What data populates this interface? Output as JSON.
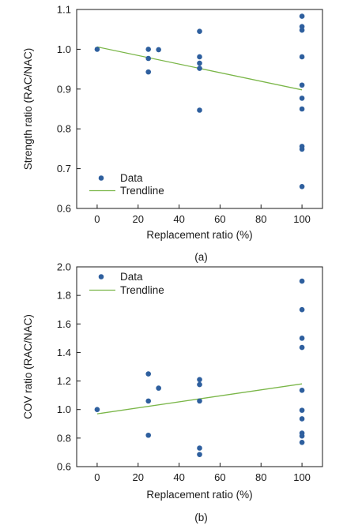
{
  "chart_data": [
    {
      "type": "scatter",
      "panel_label": "(a)",
      "xlabel": "Replacement ratio (%)",
      "ylabel": "Strength ratio (RAC/NAC)",
      "xlim": [
        -10,
        110
      ],
      "ylim": [
        0.6,
        1.1
      ],
      "xticks": [
        0,
        20,
        40,
        60,
        80,
        100
      ],
      "yticks": [
        0.6,
        0.7,
        0.8,
        0.9,
        1.0,
        1.1
      ],
      "ytick_labels": [
        "0.6",
        "0.7",
        "0.8",
        "0.9",
        "1.0",
        "1.1"
      ],
      "grid": false,
      "legend_position": "bottom-left",
      "series": [
        {
          "name": "Data",
          "kind": "points",
          "color": "#2e5f9e",
          "x": [
            0,
            25,
            25,
            25,
            30,
            50,
            50,
            50,
            50,
            50,
            100,
            100,
            100,
            100,
            100,
            100,
            100,
            100,
            100,
            100
          ],
          "y": [
            1.0,
            1.0,
            0.977,
            0.943,
            0.999,
            1.045,
            0.981,
            0.965,
            0.952,
            0.847,
            1.083,
            1.057,
            1.048,
            0.981,
            0.91,
            0.877,
            0.85,
            0.756,
            0.749,
            0.655
          ]
        },
        {
          "name": "Trendline",
          "kind": "line",
          "color": "#7ab648",
          "x": [
            0,
            100
          ],
          "y": [
            1.006,
            0.898
          ]
        }
      ]
    },
    {
      "type": "scatter",
      "panel_label": "(b)",
      "xlabel": "Replacement ratio (%)",
      "ylabel": "COV ratio (RAC/NAC)",
      "xlim": [
        -10,
        110
      ],
      "ylim": [
        0.6,
        2.0
      ],
      "xticks": [
        0,
        20,
        40,
        60,
        80,
        100
      ],
      "yticks": [
        0.6,
        0.8,
        1.0,
        1.2,
        1.4,
        1.6,
        1.8,
        2.0
      ],
      "ytick_labels": [
        "0.6",
        "0.8",
        "1.0",
        "1.2",
        "1.4",
        "1.6",
        "1.8",
        "2.0"
      ],
      "grid": false,
      "legend_position": "top-left",
      "series": [
        {
          "name": "Data",
          "kind": "points",
          "color": "#2e5f9e",
          "x": [
            0,
            25,
            25,
            25,
            30,
            50,
            50,
            50,
            50,
            50,
            100,
            100,
            100,
            100,
            100,
            100,
            100,
            100,
            100,
            100
          ],
          "y": [
            1.0,
            1.25,
            1.06,
            0.82,
            1.15,
            1.21,
            1.175,
            1.06,
            0.73,
            0.685,
            1.9,
            1.7,
            1.5,
            1.435,
            1.135,
            0.995,
            0.935,
            0.835,
            0.815,
            0.77
          ]
        },
        {
          "name": "Trendline",
          "kind": "line",
          "color": "#7ab648",
          "x": [
            0,
            100
          ],
          "y": [
            0.97,
            1.18
          ]
        }
      ]
    }
  ]
}
